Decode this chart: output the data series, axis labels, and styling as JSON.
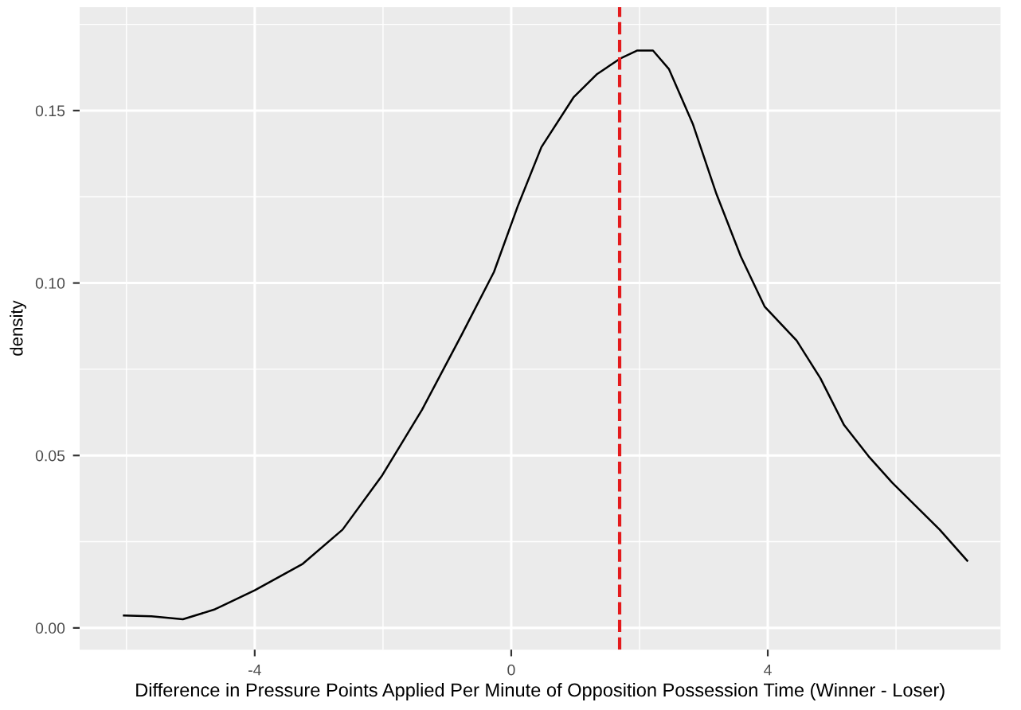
{
  "chart_data": {
    "type": "line",
    "xlabel": "Difference in Pressure Points Applied Per Minute of Opposition Possession Time (Winner - Loser)",
    "ylabel": "density",
    "x": [
      -6.04,
      -5.61,
      -5.12,
      -4.62,
      -4.0,
      -3.25,
      -2.63,
      -2.01,
      -1.39,
      -0.77,
      -0.27,
      0.1,
      0.47,
      0.97,
      1.34,
      1.71,
      1.96,
      2.21,
      2.46,
      2.83,
      3.2,
      3.58,
      3.95,
      4.45,
      4.82,
      5.19,
      5.57,
      5.94,
      6.31,
      6.68,
      7.11
    ],
    "series": [
      {
        "color": "#000000",
        "values": [
          0.0036,
          0.0034,
          0.0025,
          0.0054,
          0.0109,
          0.0186,
          0.0285,
          0.0443,
          0.0633,
          0.0851,
          0.1032,
          0.1222,
          0.1394,
          0.1538,
          0.1606,
          0.1652,
          0.1674,
          0.1674,
          0.162,
          0.1462,
          0.1258,
          0.1077,
          0.0932,
          0.0833,
          0.0724,
          0.0588,
          0.0498,
          0.0421,
          0.0353,
          0.0285,
          0.0195
        ]
      }
    ],
    "xlim": [
      -6.73,
      7.63
    ],
    "ylim": [
      -0.0063,
      0.18
    ],
    "xticks": [
      -4,
      0,
      4
    ],
    "yticks": [
      {
        "value": 0,
        "label": "0.00"
      },
      0.05,
      {
        "value": 0.1,
        "label": "0.10"
      },
      0.15
    ],
    "ref_lines": [
      {
        "axis": "x",
        "value": 1.69,
        "color": "#e41a1c",
        "line_style": "dashed"
      }
    ],
    "grid": true,
    "marker": "none",
    "line_style": "solid",
    "legend": false
  }
}
